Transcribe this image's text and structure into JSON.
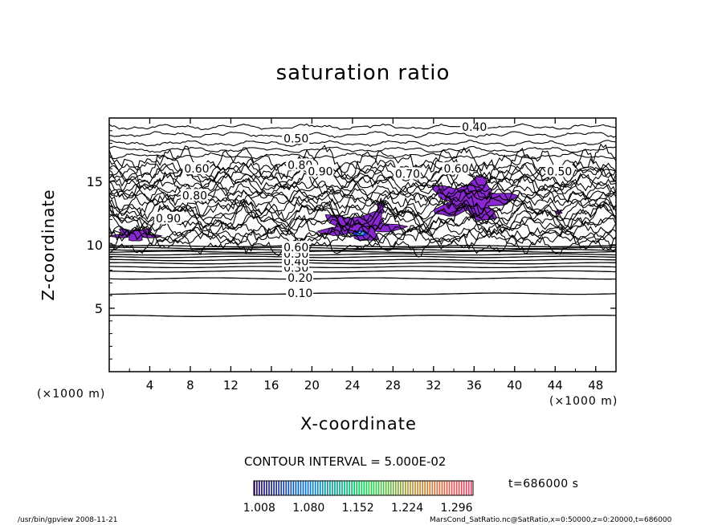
{
  "chart_data": {
    "type": "contour",
    "title": "saturation ratio",
    "xlabel": "X-coordinate",
    "ylabel": "Z-coordinate",
    "x_unit": "(×1000 m)",
    "xlim": [
      0,
      50
    ],
    "ylim": [
      0,
      20
    ],
    "x_ticks": [
      "4",
      "8",
      "12",
      "16",
      "20",
      "24",
      "28",
      "32",
      "36",
      "40",
      "44",
      "48"
    ],
    "x_tick_values": [
      4,
      8,
      12,
      16,
      20,
      24,
      28,
      32,
      36,
      40,
      44,
      48
    ],
    "y_ticks": [
      "5",
      "10",
      "15"
    ],
    "y_tick_values": [
      5,
      10,
      15
    ],
    "contour_interval": "CONTOUR INTERVAL = 5.000E-02",
    "contour_labels": [
      {
        "text": "0.10",
        "x": 17.6,
        "z": 6.2
      },
      {
        "text": "0.20",
        "x": 17.6,
        "z": 7.4
      },
      {
        "text": "0.30",
        "x": 17.2,
        "z": 8.2
      },
      {
        "text": "0.40",
        "x": 17.2,
        "z": 8.7
      },
      {
        "text": "0.50",
        "x": 17.2,
        "z": 9.3
      },
      {
        "text": "0.60",
        "x": 17.2,
        "z": 9.8
      },
      {
        "text": "0.50",
        "x": 17.2,
        "z": 18.4
      },
      {
        "text": "0.40",
        "x": 34.8,
        "z": 19.3
      },
      {
        "text": "0.60",
        "x": 7.4,
        "z": 16.0
      },
      {
        "text": "0.80",
        "x": 17.6,
        "z": 16.3
      },
      {
        "text": "0.90",
        "x": 19.6,
        "z": 15.8
      },
      {
        "text": "0.70",
        "x": 28.2,
        "z": 15.6
      },
      {
        "text": "0.60",
        "x": 33.0,
        "z": 16.0
      },
      {
        "text": "0.50",
        "x": 43.2,
        "z": 15.8
      },
      {
        "text": "0.80",
        "x": 7.2,
        "z": 13.9
      },
      {
        "text": "0.90",
        "x": 4.6,
        "z": 12.1
      }
    ],
    "supersaturated_regions": [
      {
        "x": [
          0.2,
          5.0
        ],
        "z": [
          10.3,
          11.3
        ]
      },
      {
        "x": [
          20.5,
          29.0
        ],
        "z": [
          10.3,
          12.6
        ]
      },
      {
        "x": [
          31.5,
          40.0
        ],
        "z": [
          11.8,
          15.3
        ]
      },
      {
        "x": [
          26.4,
          27.2
        ],
        "z": [
          12.4,
          13.6
        ]
      },
      {
        "x": [
          17.5,
          18.5
        ],
        "z": [
          15.8,
          16.3
        ]
      },
      {
        "x": [
          44.0,
          44.7
        ],
        "z": [
          12.4,
          12.8
        ]
      }
    ],
    "colorbar": {
      "range": [
        1.0,
        1.32
      ],
      "tick_labels": [
        "1.008",
        "1.080",
        "1.152",
        "1.224",
        "1.296"
      ]
    },
    "annotation": "t=686000 s"
  },
  "footer": {
    "program": "/usr/bin/gpview   2008-11-21",
    "source": "MarsCond_SatRatio.nc@SatRatio,x=0:50000,z=0:20000,t=686000"
  },
  "colors": {
    "contour": "#000000",
    "fill_main": "#8a26d2",
    "fill_core": "#2233cc",
    "fill_peak": "#44bbee"
  }
}
